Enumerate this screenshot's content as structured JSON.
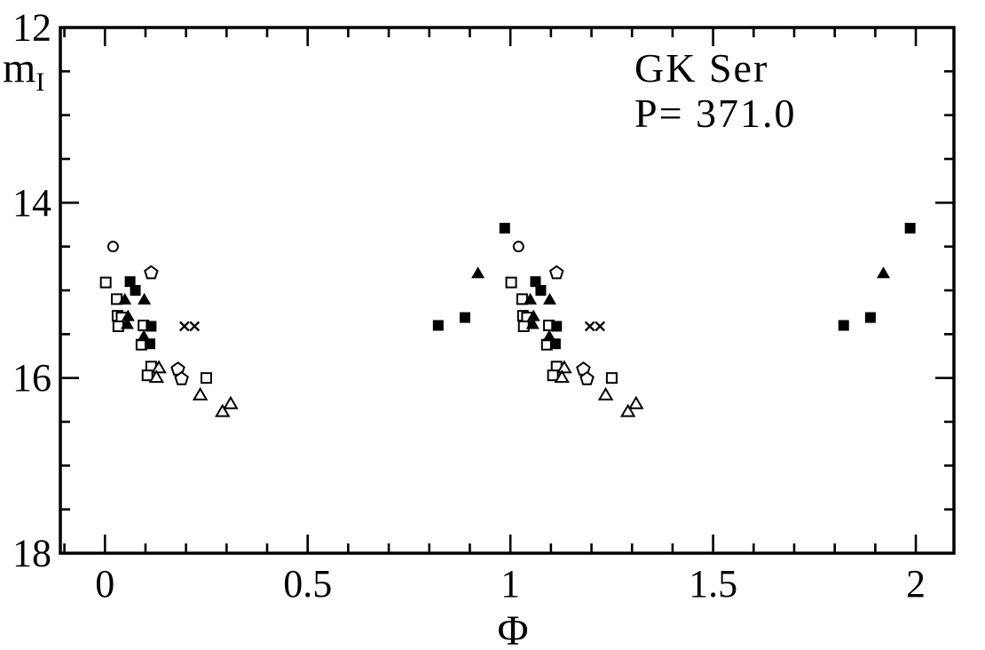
{
  "figure": {
    "background": "#ffffff",
    "ink": "#000000"
  },
  "chart_data": {
    "type": "scatter",
    "title": "GK Ser",
    "subtitle": "P= 371.0",
    "xlabel": "Φ",
    "ylabel": {
      "text": "m",
      "subscript": "I"
    },
    "x_axis": {
      "min": -0.11,
      "max": 2.094,
      "major_ticks": [
        0,
        0.5,
        1,
        1.5,
        2
      ],
      "major_tick_labels": [
        "0",
        "0.5",
        "1",
        "1.5",
        "2"
      ],
      "minor_step": 0.1
    },
    "y_axis": {
      "min": 12,
      "max": 18,
      "major_ticks": [
        12,
        14,
        16,
        18
      ],
      "major_tick_labels": [
        "12",
        "14",
        "16",
        "18"
      ],
      "minor_step": 0.5,
      "direction": "magnitude-increases-downward"
    },
    "grid": false,
    "legend": "none",
    "phase_duplication": true,
    "duplication_offset": 1.0,
    "series": [
      {
        "name": "open squares",
        "marker": "open-square",
        "points": [
          [
            0.002,
            14.91
          ],
          [
            0.029,
            15.1
          ],
          [
            0.031,
            15.29
          ],
          [
            0.041,
            15.31
          ],
          [
            0.033,
            15.41
          ],
          [
            0.095,
            15.4
          ],
          [
            0.09,
            15.62
          ],
          [
            0.114,
            15.87
          ],
          [
            0.105,
            15.97
          ],
          [
            0.25,
            16.0
          ]
        ]
      },
      {
        "name": "open pentagons",
        "marker": "open-pentagon",
        "points": [
          [
            0.114,
            14.8
          ],
          [
            0.18,
            15.9
          ],
          [
            0.189,
            16.01
          ]
        ]
      },
      {
        "name": "open triangles",
        "marker": "open-triangle",
        "points": [
          [
            0.133,
            15.88
          ],
          [
            0.127,
            15.99
          ],
          [
            0.235,
            16.19
          ],
          [
            0.29,
            16.38
          ],
          [
            0.31,
            16.29
          ]
        ]
      },
      {
        "name": "open circles",
        "marker": "open-circle",
        "points": [
          [
            0.02,
            14.5
          ]
        ]
      },
      {
        "name": "filled squares",
        "marker": "filled-square",
        "points": [
          [
            0.062,
            14.9
          ],
          [
            0.075,
            15.0
          ],
          [
            0.114,
            15.41
          ],
          [
            0.111,
            15.61
          ],
          [
            0.822,
            15.4
          ],
          [
            0.888,
            15.31
          ],
          [
            0.986,
            14.29
          ]
        ]
      },
      {
        "name": "filled triangles",
        "marker": "filled-triangle",
        "points": [
          [
            0.049,
            15.1
          ],
          [
            0.097,
            15.1
          ],
          [
            0.057,
            15.29
          ],
          [
            0.055,
            15.38
          ],
          [
            0.096,
            15.52
          ],
          [
            0.92,
            14.8
          ]
        ]
      },
      {
        "name": "crosses",
        "marker": "cross",
        "points": [
          [
            0.196,
            15.41
          ],
          [
            0.221,
            15.41
          ]
        ]
      }
    ]
  }
}
